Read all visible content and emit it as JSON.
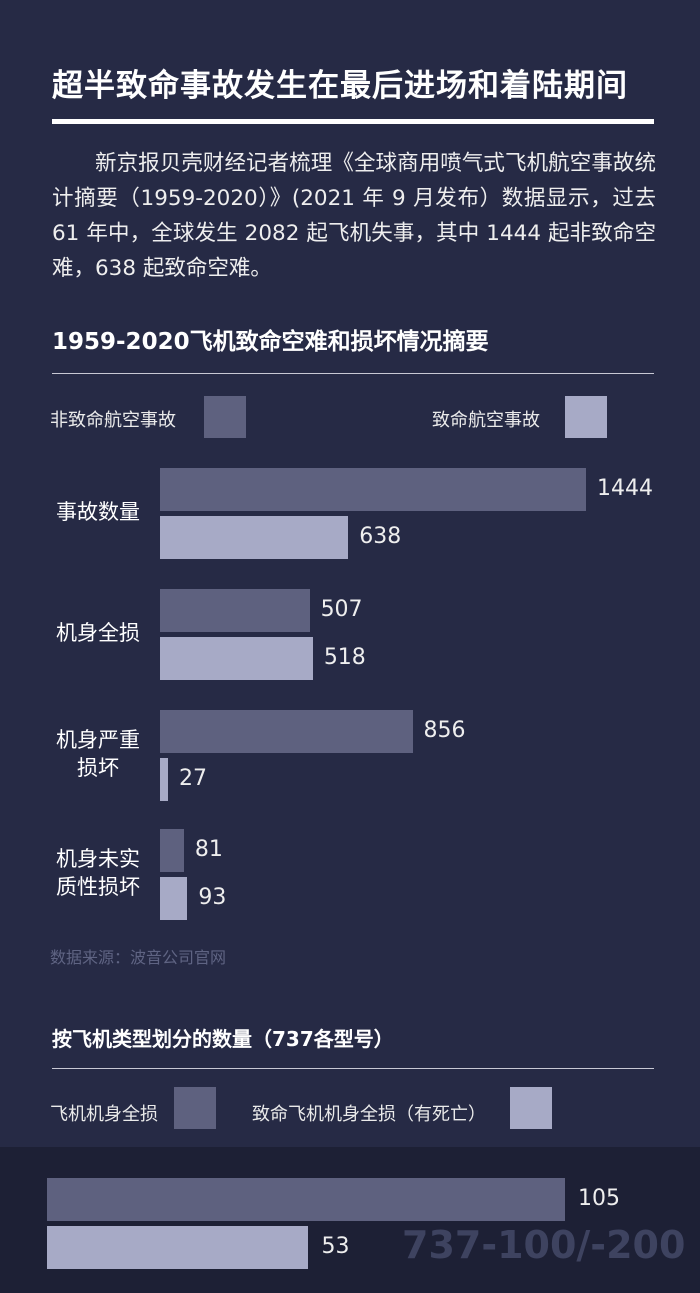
{
  "page": {
    "title": "超半致命事故发生在最后进场和着陆期间",
    "intro": "新京报贝壳财经记者梳理《全球商用喷气式飞机航空事故统计摘要（1959-2020）》(2021 年 9 月发布）数据显示，过去 61 年中，全球发生 2082 起飞机失事，其中 1444 起非致命空难，638 起致命空难。",
    "source": "数据来源：波音公司官网"
  },
  "colors": {
    "background": "#262a45",
    "series_nonfatal": "#5e617f",
    "series_fatal": "#a7aac6",
    "band": "#1d2035"
  },
  "chart_data": [
    {
      "type": "bar",
      "orientation": "horizontal",
      "title": "1959-2020飞机致命空难和损坏情况摘要",
      "legend_placement": "top",
      "categories": [
        "事故数量",
        "机身全损",
        "机身严重损坏",
        "机身未实质性损坏"
      ],
      "category_display": [
        [
          "事故数量"
        ],
        [
          "机身全损"
        ],
        [
          "机身严重",
          "损坏"
        ],
        [
          "机身未实",
          "质性损坏"
        ]
      ],
      "series": [
        {
          "name": "非致命航空事故",
          "values": [
            1444,
            507,
            856,
            81
          ]
        },
        {
          "name": "致命航空事故",
          "values": [
            638,
            518,
            27,
            93
          ]
        }
      ],
      "xlim": [
        0,
        1444
      ],
      "grid": false
    },
    {
      "type": "bar",
      "orientation": "horizontal",
      "title": "按飞机类型划分的数量（737各型号）",
      "legend_placement": "top",
      "categories": [
        "737-100/-200"
      ],
      "series": [
        {
          "name": "飞机机身全损",
          "values": [
            105
          ]
        },
        {
          "name": "致命飞机机身全损（有死亡）",
          "values": [
            53
          ]
        }
      ],
      "xlim": [
        0,
        105
      ],
      "grid": false
    }
  ]
}
